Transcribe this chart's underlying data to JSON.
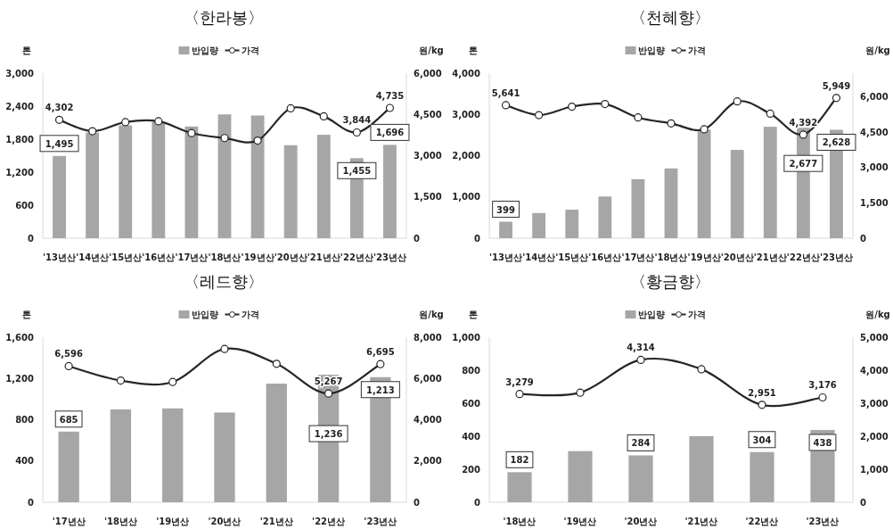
{
  "chart_data": [
    {
      "type": "bar",
      "title": "〈한라봉〉",
      "ylabel": "톤",
      "y2label": "원/kg",
      "legend": "top",
      "categories": [
        "'13년산",
        "'14년산",
        "'15년산",
        "'16년산",
        "'17년산",
        "'18년산",
        "'19년산",
        "'20년산",
        "'21년산",
        "'22년산",
        "'23년산"
      ],
      "ylim": [
        0,
        3000
      ],
      "yticks": [
        0,
        600,
        {
          "value": 1200,
          "label": "1,200"
        },
        {
          "value": 1800,
          "label": "1,800"
        },
        {
          "value": 2400,
          "label": "2,400"
        },
        {
          "value": 3000,
          "label": "3,000"
        }
      ],
      "y2lim": [
        0,
        6000
      ],
      "y2ticks": [
        {
          "value": 0,
          "label": "0"
        },
        {
          "value": 1500,
          "label": "1,500"
        },
        {
          "value": 3000,
          "label": "3,000"
        },
        {
          "value": 4500,
          "label": "4,500"
        },
        {
          "value": 6000,
          "label": "6,000"
        }
      ],
      "series": [
        {
          "name": "반입량",
          "color": "#a6a6a6",
          "values": [
            1495,
            1920,
            2050,
            2120,
            2030,
            2250,
            2230,
            1690,
            1880,
            1455,
            1696
          ],
          "value_labels": [
            "1,495",
            null,
            null,
            null,
            null,
            null,
            null,
            null,
            null,
            "1,455",
            "1,696"
          ]
        },
        {
          "name": "가격",
          "type": "line",
          "axis": "y2",
          "color": "#262626",
          "marker": "circle",
          "values": [
            4302,
            3890,
            4220,
            4250,
            3820,
            3640,
            3550,
            4720,
            4430,
            3844,
            4735
          ],
          "value_labels": [
            "4,302",
            null,
            null,
            null,
            null,
            null,
            null,
            null,
            null,
            "3,844",
            "4,735"
          ]
        }
      ]
    },
    {
      "type": "bar",
      "title": "〈천혜향〉",
      "ylabel": "톤",
      "y2label": "원/kg",
      "legend": "top",
      "categories": [
        "'13년산",
        "'14년산",
        "'15년산",
        "'16년산",
        "'17년산",
        "'18년산",
        "'19년산",
        "'20년산",
        "'21년산",
        "'22년산",
        "'23년산"
      ],
      "ylim": [
        0,
        4000
      ],
      "yticks": [
        0,
        {
          "value": 1000,
          "label": "1,000"
        },
        {
          "value": 2000,
          "label": "2,000"
        },
        {
          "value": 3000,
          "label": "3,000"
        },
        {
          "value": 4000,
          "label": "4,000"
        }
      ],
      "y2lim": [
        0,
        7000
      ],
      "y2ticks": [
        {
          "value": 0,
          "label": "0"
        },
        {
          "value": 1500,
          "label": "1,500"
        },
        {
          "value": 3000,
          "label": "3,000"
        },
        {
          "value": 4500,
          "label": "4,500"
        },
        {
          "value": 6000,
          "label": "6,000"
        }
      ],
      "series": [
        {
          "name": "반입량",
          "color": "#a6a6a6",
          "values": [
            399,
            610,
            690,
            1010,
            1430,
            1690,
            2630,
            2140,
            2700,
            2677,
            2628
          ],
          "value_labels": [
            "399",
            null,
            null,
            null,
            null,
            null,
            null,
            null,
            null,
            "2,677",
            "2,628"
          ]
        },
        {
          "name": "가격",
          "type": "line",
          "axis": "y2",
          "color": "#262626",
          "marker": "circle",
          "values": [
            5641,
            5220,
            5580,
            5690,
            5120,
            4870,
            4620,
            5800,
            5280,
            4392,
            5949
          ],
          "value_labels": [
            "5,641",
            null,
            null,
            null,
            null,
            null,
            null,
            null,
            null,
            "4,392",
            "5,949"
          ]
        }
      ]
    },
    {
      "type": "bar",
      "title": "〈레드향〉",
      "ylabel": "톤",
      "y2label": "원/kg",
      "legend": "top",
      "categories": [
        "'17년산",
        "'18년산",
        "'19년산",
        "'20년산",
        "'21년산",
        "'22년산",
        "'23년산"
      ],
      "ylim": [
        0,
        1600
      ],
      "yticks": [
        0,
        400,
        800,
        {
          "value": 1200,
          "label": "1,200"
        },
        {
          "value": 1600,
          "label": "1,600"
        }
      ],
      "y2lim": [
        0,
        8000
      ],
      "y2ticks": [
        {
          "value": 0,
          "label": "0"
        },
        {
          "value": 2000,
          "label": "2,000"
        },
        {
          "value": 4000,
          "label": "4,000"
        },
        {
          "value": 6000,
          "label": "6,000"
        },
        {
          "value": 8000,
          "label": "8,000"
        }
      ],
      "series": [
        {
          "name": "반입량",
          "color": "#a6a6a6",
          "values": [
            685,
            900,
            910,
            870,
            1150,
            1236,
            1213
          ],
          "value_labels": [
            "685",
            null,
            null,
            null,
            null,
            "1,236",
            "1,213"
          ]
        },
        {
          "name": "가격",
          "type": "line",
          "axis": "y2",
          "color": "#262626",
          "marker": "circle",
          "values": [
            6596,
            5900,
            5830,
            7430,
            6710,
            5267,
            6695
          ],
          "value_labels": [
            "6,596",
            null,
            null,
            null,
            null,
            "5,267",
            "6,695"
          ]
        }
      ]
    },
    {
      "type": "bar",
      "title": "〈황금향〉",
      "ylabel": "톤",
      "y2label": "원/kg",
      "legend": "top",
      "categories": [
        "'18년산",
        "'19년산",
        "'20년산",
        "'21년산",
        "'22년산",
        "'23년산"
      ],
      "ylim": [
        0,
        1000
      ],
      "yticks": [
        0,
        200,
        400,
        600,
        800,
        {
          "value": 1000,
          "label": "1,000"
        }
      ],
      "y2lim": [
        0,
        5000
      ],
      "y2ticks": [
        {
          "value": 0,
          "label": "0"
        },
        {
          "value": 1000,
          "label": "1,000"
        },
        {
          "value": 2000,
          "label": "2,000"
        },
        {
          "value": 3000,
          "label": "3,000"
        },
        {
          "value": 4000,
          "label": "4,000"
        },
        {
          "value": 5000,
          "label": "5,000"
        }
      ],
      "series": [
        {
          "name": "반입량",
          "color": "#a6a6a6",
          "values": [
            182,
            310,
            284,
            400,
            304,
            438
          ],
          "value_labels": [
            "182",
            null,
            "284",
            null,
            "304",
            "438"
          ]
        },
        {
          "name": "가격",
          "type": "line",
          "axis": "y2",
          "color": "#262626",
          "marker": "circle",
          "values": [
            3279,
            3320,
            4314,
            4030,
            2951,
            3176
          ],
          "value_labels": [
            "3,279",
            null,
            "4,314",
            null,
            "2,951",
            "3,176"
          ]
        }
      ]
    }
  ]
}
